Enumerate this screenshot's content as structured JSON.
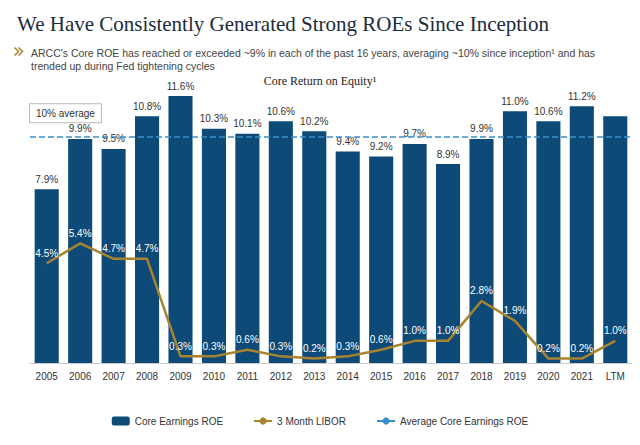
{
  "chart_data": {
    "type": "bar",
    "title": "We Have Consistently Generated Strong ROEs Since Inception",
    "subtitle": "ARCC's Core ROE has reached or exceeded ~9% in each of the past 16 years, averaging ~10% since inception¹ and has trended up during Fed tightening cycles",
    "chart_title": "Core Return on Equity¹",
    "categories": [
      "2005",
      "2006",
      "2007",
      "2008",
      "2009",
      "2010",
      "2011",
      "2012",
      "2013",
      "2014",
      "2015",
      "2016",
      "2017",
      "2018",
      "2019",
      "2020",
      "2021",
      "LTM"
    ],
    "series": [
      {
        "name": "Core Earnings ROE",
        "type": "bar",
        "color": "#0d4a77",
        "values": [
          7.9,
          9.9,
          9.5,
          10.8,
          11.6,
          10.3,
          10.1,
          10.6,
          10.2,
          9.4,
          9.2,
          9.7,
          8.9,
          9.9,
          11.0,
          10.6,
          11.2,
          10.8
        ],
        "value_labels": [
          "7.9%",
          "9.9%",
          "9.5%",
          "10.8%",
          "11.6%",
          "10.3%",
          "10.1%",
          "10.6%",
          "10.2%",
          "9.4%",
          "9.2%",
          "9.7%",
          "8.9%",
          "9.9%",
          "11.0%",
          "10.6%",
          "11.2%",
          null
        ]
      },
      {
        "name": "3 Month LIBOR",
        "type": "line",
        "axis": "y2",
        "color": "#a8832f",
        "values": [
          4.5,
          5.4,
          4.7,
          4.7,
          0.3,
          0.3,
          0.6,
          0.3,
          0.2,
          0.3,
          0.6,
          1.0,
          1.0,
          2.8,
          1.9,
          0.2,
          0.2,
          1.0
        ],
        "value_labels": [
          "4.5%",
          "5.4%",
          "4.7%",
          "4.7%",
          "0.3%",
          "0.3%",
          "0.6%",
          "0.3%",
          "0.2%",
          "0.3%",
          "0.6%",
          "1.0%",
          "1.0%",
          "2.8%",
          "1.9%",
          "0.2%",
          "0.2%",
          "1.0%"
        ]
      },
      {
        "name": "Average Core Earnings ROE",
        "type": "average",
        "color": "#3d8ec9",
        "line_style": "dashed",
        "value": 10,
        "annotation": "10% average"
      }
    ],
    "ylim": [
      1,
      12
    ],
    "y2lim": [
      0,
      12.5
    ],
    "tick_labels": "x",
    "data_labels": true,
    "legend": "bottom",
    "grid": false
  }
}
